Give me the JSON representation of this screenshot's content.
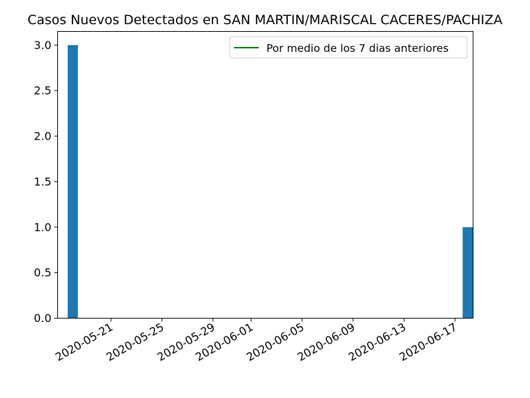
{
  "chart_data": {
    "type": "bar",
    "title": "Casos Nuevos Detectados en SAN MARTIN/MARISCAL CACERES/PACHIZA",
    "xlabel": "",
    "ylabel": "",
    "x_start": "2020-05-18",
    "x_end": "2020-06-18",
    "xlim": [
      "2020-05-17",
      "2020-06-18"
    ],
    "ylim": [
      0,
      3.15
    ],
    "bars": [
      {
        "date": "2020-05-18",
        "value": 3
      },
      {
        "date": "2020-06-18",
        "value": 1
      }
    ],
    "series": [
      {
        "name": "Por medio de los 7 dias anteriores",
        "color": "#008000"
      }
    ],
    "bar_color": "#1f77b4",
    "x_tick_labels": [
      "2020-05-21",
      "2020-05-25",
      "2020-05-29",
      "2020-06-01",
      "2020-06-05",
      "2020-06-09",
      "2020-06-13",
      "2020-06-17"
    ],
    "y_tick_labels": [
      "0.0",
      "0.5",
      "1.0",
      "1.5",
      "2.0",
      "2.5",
      "3.0"
    ],
    "legend_position": "upper right",
    "grid": false
  }
}
